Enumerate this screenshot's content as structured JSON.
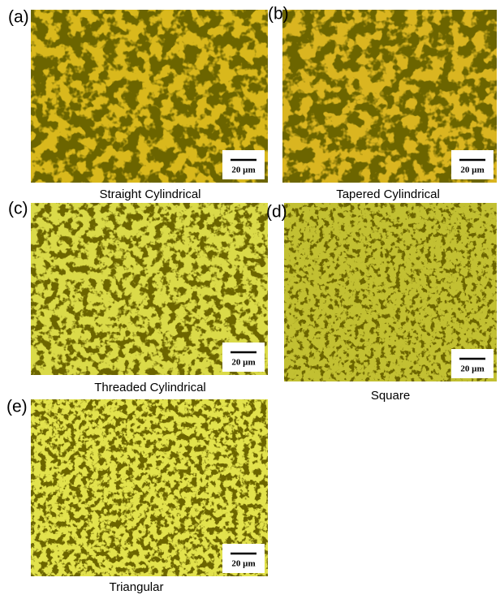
{
  "panels": [
    {
      "label": "(a)",
      "caption": "Straight Cylindrical",
      "scale_bar": "20 µm"
    },
    {
      "label": "(b)",
      "caption": "Tapered Cylindrical",
      "scale_bar": "20 µm"
    },
    {
      "label": "(c)",
      "caption": "Threaded Cylindrical",
      "scale_bar": "20 µm"
    },
    {
      "label": "(d)",
      "caption": "Square",
      "scale_bar": "20 µm"
    },
    {
      "label": "(e)",
      "caption": "Triangular",
      "scale_bar": "20 µm"
    }
  ]
}
